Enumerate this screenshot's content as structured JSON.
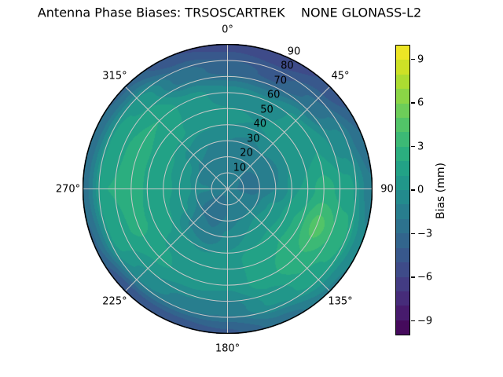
{
  "title": "Antenna Phase Biases: TRSOSCARTREK    NONE GLONASS-L2",
  "chart_data": {
    "type": "heatmap",
    "projection": "polar",
    "title": "Antenna Phase Biases: TRSOSCARTREK    NONE GLONASS-L2",
    "grid": true,
    "theta_zero_location": "N",
    "theta_direction": "clockwise",
    "theta_tick_degrees": [
      0,
      45,
      90,
      135,
      180,
      225,
      270,
      315
    ],
    "theta_tick_labels": [
      "0°",
      "45°",
      "90",
      "135°",
      "180°",
      "225°",
      "270°",
      "315°"
    ],
    "r_ticks": [
      10,
      20,
      30,
      40,
      50,
      60,
      70,
      80,
      90
    ],
    "r_tick_labels": [
      "10",
      "20",
      "30",
      "40",
      "50",
      "60",
      "70",
      "80",
      "90"
    ],
    "r_max": 90,
    "colorbar": {
      "label": "Bias (mm)",
      "tick_values": [
        9,
        6,
        3,
        0,
        -3,
        -6,
        -9
      ],
      "tick_labels": [
        "9",
        "6",
        "3",
        "0",
        "−3",
        "−6",
        "−9"
      ],
      "vmin": -10,
      "vmax": 10,
      "n_levels": 20,
      "position": "right"
    },
    "colormap": "viridis",
    "colormap_stops": [
      "#440154",
      "#482475",
      "#414487",
      "#355f8d",
      "#2a788e",
      "#21918c",
      "#22a884",
      "#44bf70",
      "#7ad151",
      "#bddf26",
      "#fde725"
    ],
    "azimuth_deg": [
      0,
      22.5,
      45,
      67.5,
      90,
      112.5,
      135,
      157.5,
      180,
      202.5,
      225,
      247.5,
      270,
      292.5,
      315,
      337.5
    ],
    "zenith_deg": [
      0,
      15,
      30,
      45,
      60,
      75,
      90
    ],
    "bias_mm": [
      [
        -1.8,
        -2.0,
        -1.0,
        0.3,
        -0.5,
        -3.5,
        -5.4
      ],
      [
        -1.8,
        -2.0,
        -1.2,
        0.0,
        -0.8,
        -4.2,
        -5.8
      ],
      [
        -1.8,
        -2.0,
        -1.0,
        0.3,
        0.2,
        -2.8,
        -4.8
      ],
      [
        -1.8,
        -2.2,
        -1.2,
        0.5,
        1.0,
        -0.5,
        -3.0
      ],
      [
        -1.8,
        -2.4,
        -1.0,
        1.0,
        2.4,
        1.4,
        -1.8
      ],
      [
        -1.8,
        -1.8,
        0.2,
        2.0,
        4.4,
        2.6,
        -0.8
      ],
      [
        -1.8,
        -1.2,
        0.5,
        2.0,
        2.8,
        1.8,
        -1.2
      ],
      [
        -1.8,
        -1.5,
        0.0,
        1.4,
        1.6,
        0.2,
        -2.6
      ],
      [
        -1.8,
        -2.0,
        -0.8,
        0.6,
        0.2,
        -1.6,
        -4.2
      ],
      [
        -1.8,
        -2.8,
        -1.8,
        0.2,
        0.6,
        -1.2,
        -4.8
      ],
      [
        -1.8,
        -2.6,
        -1.2,
        0.8,
        1.2,
        -0.2,
        -5.0
      ],
      [
        -1.8,
        -1.6,
        0.2,
        1.6,
        2.2,
        1.6,
        -3.2
      ],
      [
        -1.8,
        -0.8,
        0.8,
        1.8,
        2.2,
        2.0,
        -2.6
      ],
      [
        -1.8,
        -1.4,
        0.6,
        1.6,
        2.4,
        1.6,
        -2.8
      ],
      [
        -1.8,
        -2.0,
        -0.4,
        1.2,
        2.0,
        0.8,
        -3.2
      ],
      [
        -1.8,
        -2.0,
        -1.0,
        0.6,
        0.4,
        -2.4,
        -5.0
      ]
    ]
  }
}
